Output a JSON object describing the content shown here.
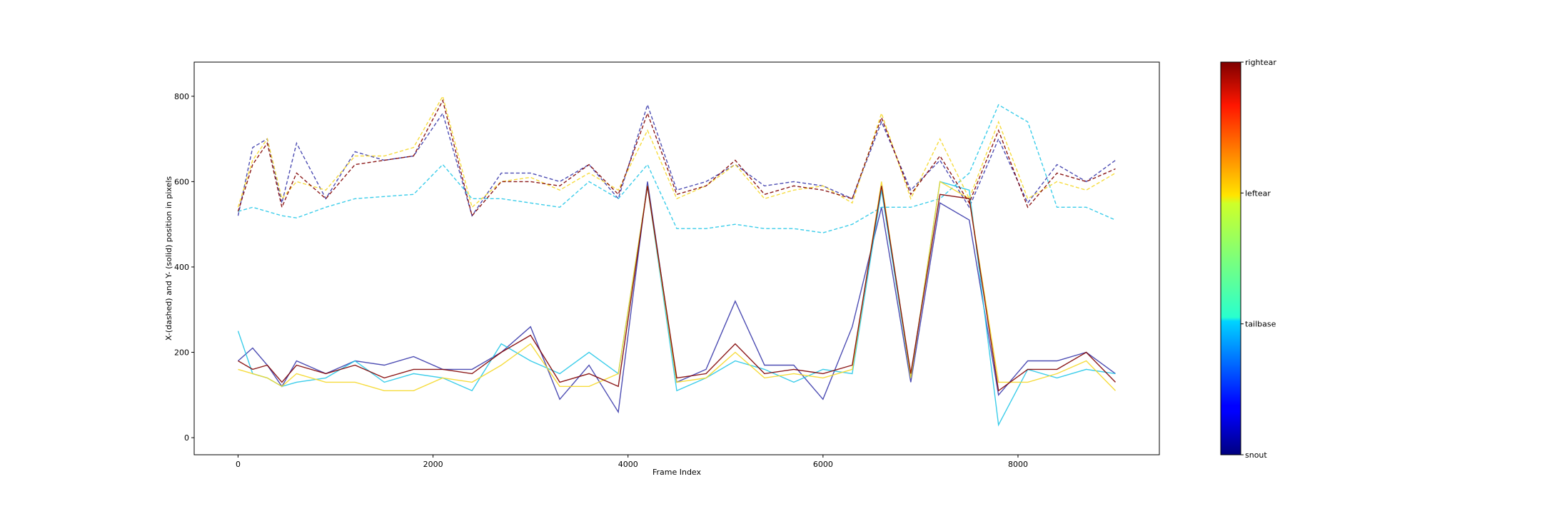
{
  "chart_data": {
    "type": "line",
    "title": "",
    "xlabel": "Frame Index",
    "ylabel": "X-(dashed) and Y- (solid) position in pixels",
    "xlim": [
      -450,
      9450
    ],
    "ylim": [
      -40,
      880
    ],
    "xticks": [
      0,
      2000,
      4000,
      6000,
      8000
    ],
    "yticks": [
      0,
      200,
      400,
      600,
      800
    ],
    "grid": false,
    "colorbar": {
      "colormap": "jet",
      "ticks": [
        "snout",
        "tailbase",
        "leftear",
        "rightear"
      ]
    },
    "series": [
      {
        "color": "#3a3aab",
        "x_values": [
          0,
          150,
          300,
          450,
          600,
          900,
          1200,
          1500,
          1800,
          2100,
          2400,
          2700,
          3000,
          3300,
          3600,
          3900,
          4200,
          4500,
          4800,
          5100,
          5400,
          5700,
          6000,
          6300,
          6600,
          6900,
          7200,
          7500,
          7800,
          8100,
          8400,
          8700,
          9000
        ],
        "x_dashed": [
          520,
          680,
          700,
          550,
          690,
          560,
          670,
          650,
          660,
          760,
          520,
          620,
          620,
          600,
          640,
          560,
          780,
          580,
          600,
          640,
          590,
          600,
          590,
          560,
          740,
          580,
          650,
          540,
          700,
          550,
          640,
          600,
          650
        ],
        "y_solid": [
          180,
          210,
          170,
          120,
          180,
          150,
          180,
          170,
          190,
          160,
          160,
          200,
          260,
          90,
          170,
          60,
          600,
          130,
          160,
          320,
          170,
          170,
          90,
          260,
          540,
          130,
          550,
          510,
          100,
          180,
          180,
          200,
          150
        ]
      },
      {
        "color": "#27c8e8",
        "x_values": [
          0,
          150,
          300,
          450,
          600,
          900,
          1200,
          1500,
          1800,
          2100,
          2400,
          2700,
          3000,
          3300,
          3600,
          3900,
          4200,
          4500,
          4800,
          5100,
          5400,
          5700,
          6000,
          6300,
          6600,
          6900,
          7200,
          7500,
          7800,
          8100,
          8400,
          8700,
          9000
        ],
        "x_dashed": [
          530,
          540,
          530,
          520,
          515,
          540,
          560,
          565,
          570,
          640,
          560,
          560,
          550,
          540,
          600,
          560,
          640,
          490,
          490,
          500,
          490,
          490,
          480,
          500,
          540,
          540,
          560,
          620,
          780,
          740,
          540,
          540,
          510
        ],
        "y_solid": [
          250,
          150,
          140,
          120,
          130,
          140,
          180,
          130,
          150,
          140,
          110,
          220,
          180,
          150,
          200,
          150,
          590,
          110,
          140,
          180,
          160,
          130,
          160,
          150,
          580,
          140,
          600,
          580,
          30,
          160,
          140,
          160,
          150
        ]
      },
      {
        "color": "#f5d829",
        "x_values": [
          0,
          150,
          300,
          450,
          600,
          900,
          1200,
          1500,
          1800,
          2100,
          2400,
          2700,
          3000,
          3300,
          3600,
          3900,
          4200,
          4500,
          4800,
          5100,
          5400,
          5700,
          6000,
          6300,
          6600,
          6900,
          7200,
          7500,
          7800,
          8100,
          8400,
          8700,
          9000
        ],
        "x_dashed": [
          540,
          650,
          700,
          560,
          600,
          580,
          660,
          660,
          680,
          800,
          540,
          600,
          610,
          580,
          620,
          580,
          720,
          560,
          590,
          640,
          560,
          580,
          590,
          550,
          760,
          560,
          700,
          560,
          740,
          560,
          600,
          580,
          620
        ],
        "y_solid": [
          160,
          150,
          140,
          120,
          150,
          130,
          130,
          110,
          110,
          140,
          130,
          170,
          220,
          120,
          120,
          150,
          590,
          130,
          140,
          200,
          140,
          150,
          140,
          160,
          600,
          140,
          600,
          560,
          130,
          130,
          150,
          180,
          110
        ]
      },
      {
        "color": "#800000",
        "x_values": [
          0,
          150,
          300,
          450,
          600,
          900,
          1200,
          1500,
          1800,
          2100,
          2400,
          2700,
          3000,
          3300,
          3600,
          3900,
          4200,
          4500,
          4800,
          5100,
          5400,
          5700,
          6000,
          6300,
          6600,
          6900,
          7200,
          7500,
          7800,
          8100,
          8400,
          8700,
          9000
        ],
        "x_dashed": [
          530,
          640,
          690,
          540,
          620,
          560,
          640,
          650,
          660,
          790,
          520,
          600,
          600,
          590,
          640,
          570,
          760,
          570,
          590,
          650,
          570,
          590,
          580,
          560,
          750,
          570,
          660,
          550,
          720,
          540,
          620,
          600,
          630
        ],
        "y_solid": [
          180,
          160,
          170,
          130,
          170,
          150,
          170,
          140,
          160,
          160,
          150,
          200,
          240,
          130,
          150,
          120,
          590,
          140,
          150,
          220,
          150,
          160,
          150,
          170,
          590,
          150,
          570,
          560,
          110,
          160,
          160,
          200,
          130
        ]
      }
    ]
  }
}
